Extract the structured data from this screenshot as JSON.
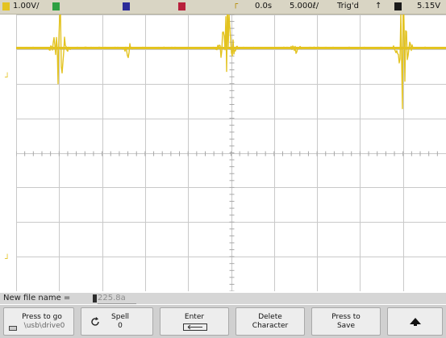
{
  "status_bar": {
    "channel1_scale": "1.00V/",
    "channel2_marker": "2",
    "channel3_marker": "3",
    "channel4_marker": "4",
    "delay": "0.0s",
    "time_scale": "5.000ℓ/",
    "trigger_status": "Trig'd",
    "trigger_level": "5.15V",
    "colors": {
      "ch1": "#e3c320",
      "ch2": "#2ea043",
      "ch3": "#2c2c99",
      "ch4": "#b8203c"
    }
  },
  "file_name_bar": {
    "label": "New file name =",
    "value": "225.8a"
  },
  "softkeys": [
    {
      "line1": "Press to go",
      "line2": "\\usb\\drive0",
      "icon": "usb-drive-icon"
    },
    {
      "line1": "Spell",
      "line2": "0",
      "icon": "rotate-knob-icon"
    },
    {
      "line1": "Enter",
      "line2": "",
      "icon": "enter-arrow-icon"
    },
    {
      "line1": "Delete",
      "line2": "Character"
    },
    {
      "line1": "Press to",
      "line2": "Save"
    },
    {
      "line1": "",
      "line2": "",
      "icon": "up-arrow-icon"
    }
  ],
  "trace": {
    "color": "#e3c320",
    "baseline_level": "0.5 div",
    "burst_times_div": [
      1.0,
      2.6,
      4.9,
      6.5,
      9.0
    ]
  }
}
